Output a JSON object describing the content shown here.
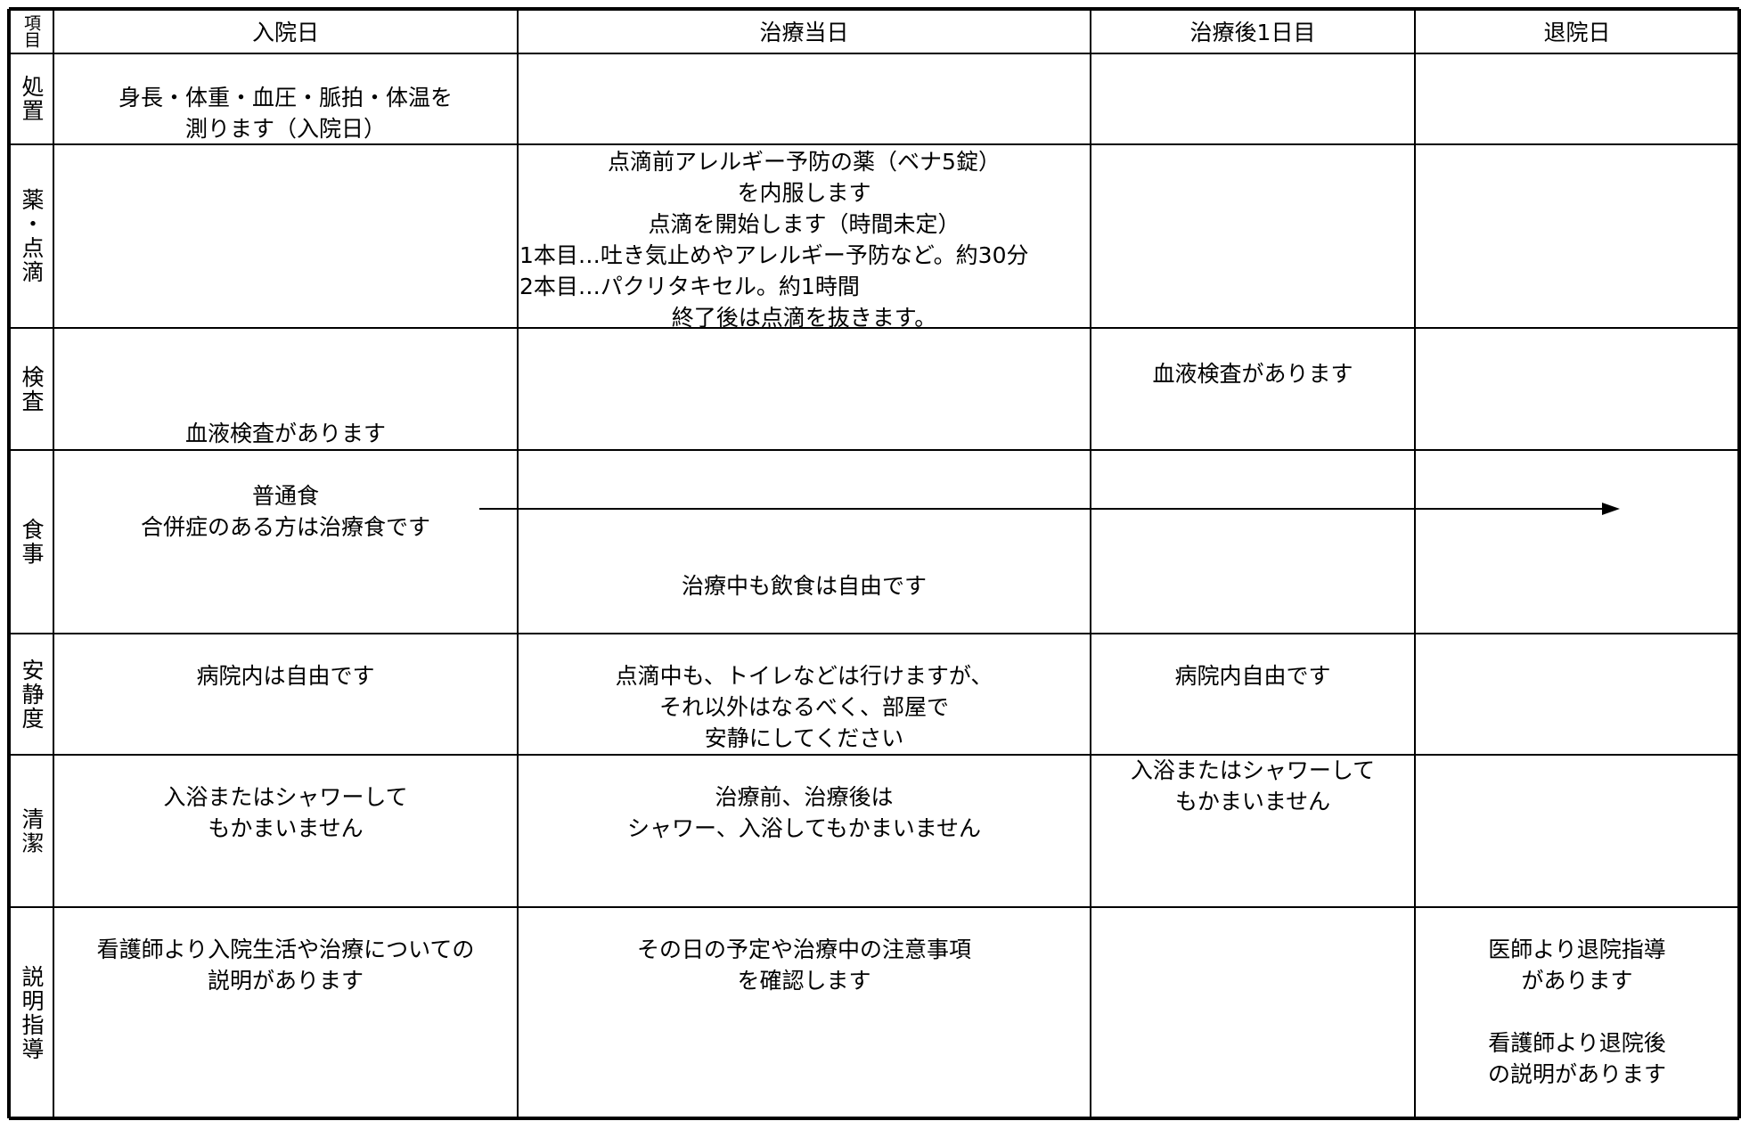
{
  "header": {
    "corner": "項目",
    "columns": [
      "入院日",
      "治療当日",
      "治療後1日目",
      "退院日"
    ]
  },
  "rows": [
    {
      "label": "処置",
      "cells": [
        [
          "身長・体重・血圧・脈拍・体温を",
          "測ります（入院日）"
        ],
        null,
        null,
        null
      ]
    },
    {
      "label": "薬・点滴",
      "cells": [
        null,
        [
          "点滴前アレルギー予防の薬（ベナ5錠）",
          "を内服します",
          "点滴を開始します（時間未定）",
          "1本目…吐き気止めやアレルギー予防など。約30分",
          "2本目…パクリタキセル。約1時間",
          "終了後は点滴を抜きます。"
        ],
        null,
        null
      ]
    },
    {
      "label": "検査",
      "cells": [
        [
          "血液検査があります"
        ],
        null,
        [
          "血液検査があります"
        ],
        null
      ]
    },
    {
      "label": "食事",
      "cells": [
        [
          "普通食",
          "合併症のある方は治療食です"
        ],
        [
          "治療中も飲食は自由です"
        ],
        null,
        null
      ]
    },
    {
      "label": "安静度",
      "cells": [
        [
          "病院内は自由です"
        ],
        [
          "点滴中も、トイレなどは行けますが、",
          "それ以外はなるべく、部屋で",
          "安静にしてください"
        ],
        [
          "病院内自由です"
        ],
        null
      ]
    },
    {
      "label": "清潔",
      "cells": [
        [
          "入浴またはシャワーして",
          "もかまいません"
        ],
        [
          "治療前、治療後は",
          "シャワー、入浴してもかまいません"
        ],
        [
          "入浴またはシャワーして",
          "もかまいません"
        ],
        null
      ]
    },
    {
      "label": "説明指導",
      "cells": [
        [
          "看護師より入院生活や治療についての",
          "説明があります"
        ],
        [
          "その日の予定や治療中の注意事項",
          "を確認します"
        ],
        null,
        [
          "医師より退院指導",
          "があります",
          "看護師より退院後",
          "の説明があります"
        ]
      ]
    }
  ]
}
